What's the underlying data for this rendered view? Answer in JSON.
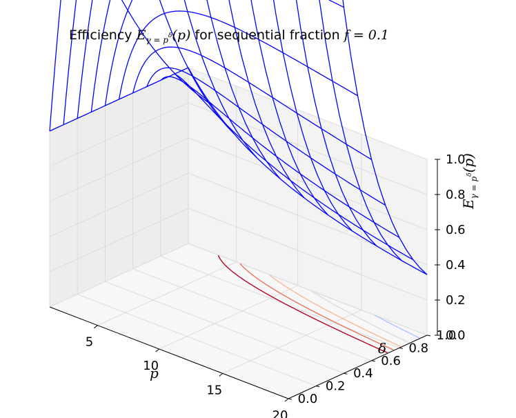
{
  "chart_data": {
    "type": "surface3d",
    "title": {
      "prefix": "Efficiency ",
      "func": "E",
      "func_sub": "γ = p",
      "func_sup": "δ",
      "func_arg": "(p)",
      "middle": " for sequential fraction ",
      "param": "f = 0.1"
    },
    "xlabel": "p",
    "ylabel": "δ",
    "zlabel": {
      "func": "E",
      "func_sub": "γ = p",
      "func_sup": "δ",
      "func_arg": "(p)"
    },
    "xlim": [
      1,
      20
    ],
    "ylim": [
      0,
      1
    ],
    "zlim": [
      0,
      1
    ],
    "xticks": [
      "5",
      "10",
      "15",
      "20"
    ],
    "yticks": [
      "0.0",
      "0.2",
      "0.4",
      "0.6",
      "0.8",
      "1.0"
    ],
    "zticks": [
      "0.0",
      "0.2",
      "0.4",
      "0.6",
      "0.8",
      "1.0"
    ],
    "sequential_fraction": 0.1,
    "wireframe": {
      "color": "#0000ff",
      "p": [
        1,
        2.9,
        4.8,
        6.7,
        8.6,
        10.5,
        12.4,
        14.3,
        16.2,
        18.1,
        20
      ],
      "delta": [
        0,
        0.1,
        0.2,
        0.3,
        0.4,
        0.5,
        0.6,
        0.7,
        0.8,
        0.9,
        1.0
      ]
    },
    "contour_floor": {
      "levels": [
        0.2,
        0.3,
        0.4,
        0.5,
        0.6,
        0.7,
        0.8
      ],
      "colors": [
        "#3b4cc0",
        "#6f92f3",
        "#aac7fd",
        "#dddcdc",
        "#f7b89c",
        "#e7745b",
        "#b40426"
      ]
    },
    "grid": true,
    "pane_colors": {
      "left": "#ededed",
      "back": "#f3f3f3",
      "floor": "#f7f7f7"
    }
  }
}
